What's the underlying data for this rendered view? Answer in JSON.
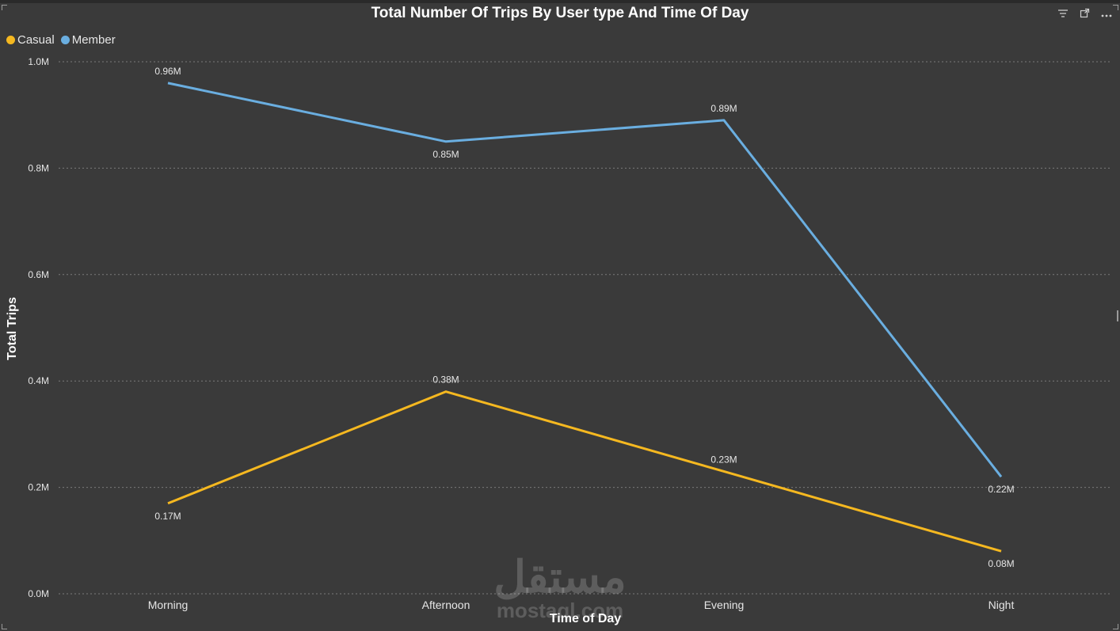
{
  "header": {
    "title": "Total Number Of Trips By User type And Time Of Day",
    "icons": [
      "filter-icon",
      "focus-mode-icon",
      "more-options-icon"
    ]
  },
  "chart_data": {
    "type": "line",
    "title": "Total Number Of Trips By User type And Time Of Day",
    "xlabel": "Time of Day",
    "ylabel": "Total Trips",
    "categories": [
      "Morning",
      "Afternoon",
      "Evening",
      "Night"
    ],
    "series": [
      {
        "name": "Casual",
        "color": "#f5b820",
        "values": [
          0.17,
          0.38,
          0.23,
          0.08
        ],
        "labels": [
          "0.17M",
          "0.38M",
          "0.23M",
          "0.08M"
        ]
      },
      {
        "name": "Member",
        "color": "#6aaee0",
        "values": [
          0.96,
          0.85,
          0.89,
          0.22
        ],
        "labels": [
          "0.96M",
          "0.85M",
          "0.89M",
          "0.22M"
        ]
      }
    ],
    "ylim": [
      0,
      1.0
    ],
    "yticks": [
      0,
      0.2,
      0.4,
      0.6,
      0.8,
      1.0
    ],
    "ytick_labels": [
      "0.0M",
      "0.2M",
      "0.4M",
      "0.6M",
      "0.8M",
      "1.0M"
    ],
    "grid": true,
    "legend": "top-left"
  },
  "watermark": {
    "logo": "مستقل",
    "url": "mostaql.com"
  }
}
